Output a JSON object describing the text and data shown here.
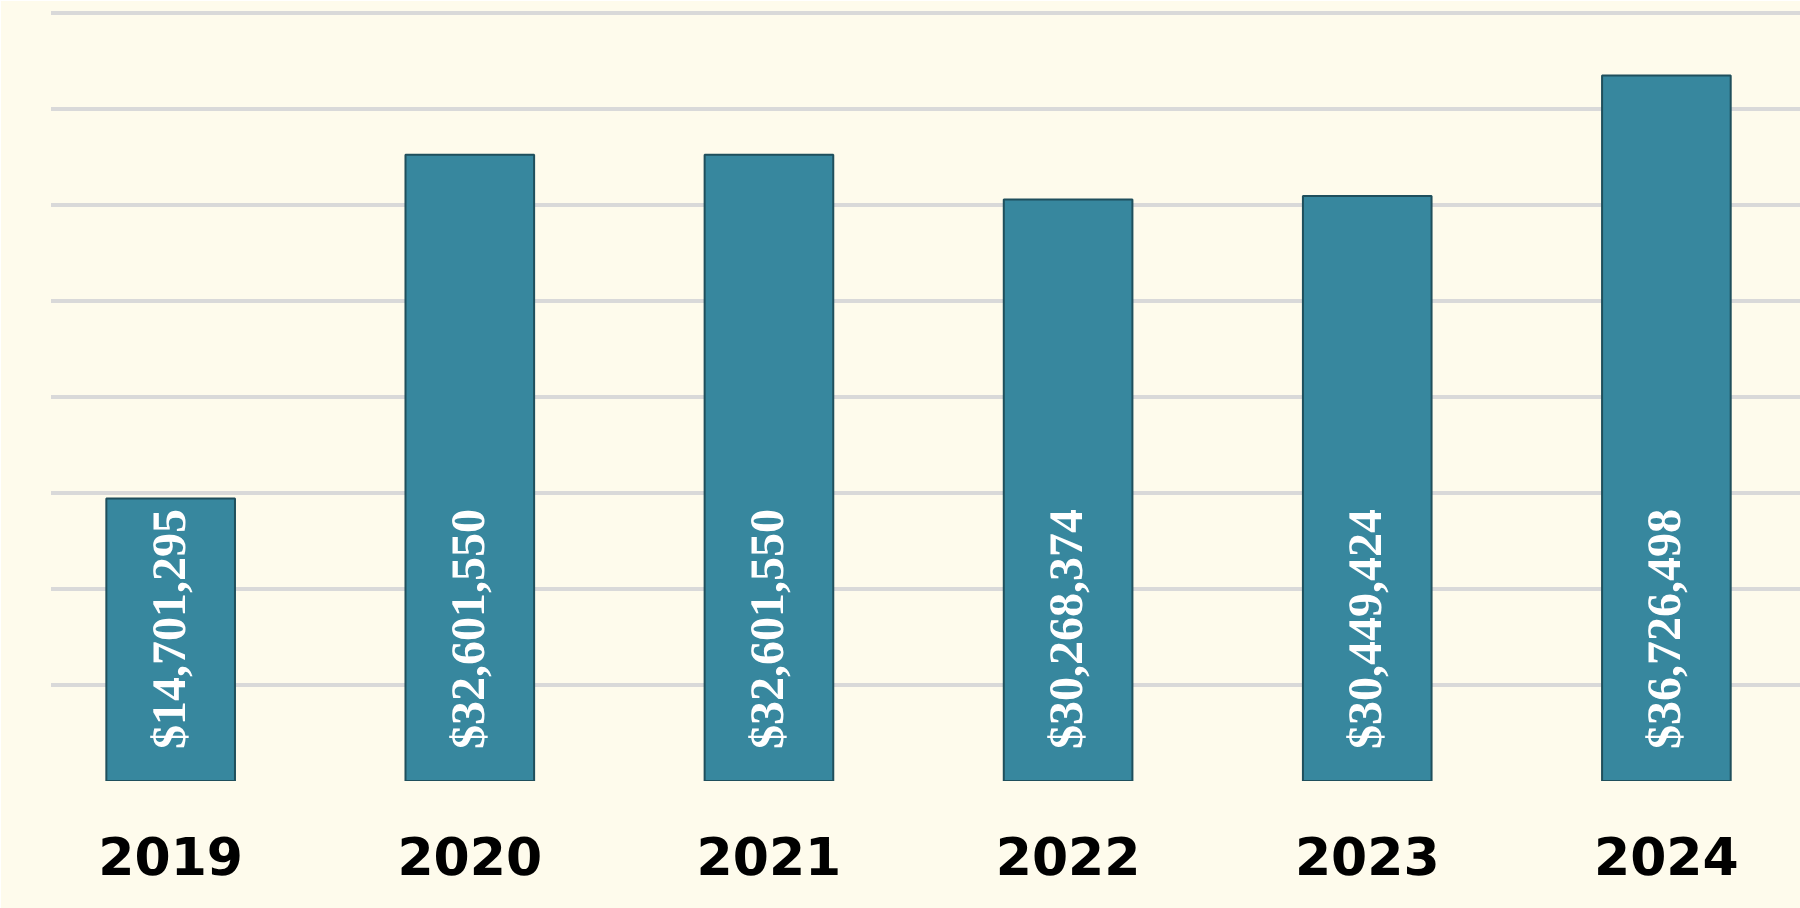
{
  "chart_data": {
    "type": "bar",
    "categories": [
      "2019",
      "2020",
      "2021",
      "2022",
      "2023",
      "2024"
    ],
    "values": [
      14701295,
      32601550,
      32601550,
      30268374,
      30449424,
      36726498
    ],
    "value_labels": [
      "$14,701,295",
      "$32,601,550",
      "$32,601,550",
      "$30,268,374",
      "$30,449,424",
      "$36,726,498"
    ],
    "color": "#37879e",
    "ylim": [
      0,
      40600000
    ],
    "yticks": [
      {
        "value": 0,
        "label": null
      },
      {
        "value": 5000000,
        "label": null
      },
      {
        "value": 10000000,
        "label": null
      },
      {
        "value": 15000000,
        "label": null
      },
      {
        "value": 20000000,
        "label": null
      },
      {
        "value": 25000000,
        "label": null
      },
      {
        "value": 30000000,
        "label": null
      },
      {
        "value": 35000000,
        "label": null
      },
      {
        "value": 40000000,
        "label": null
      }
    ],
    "grid": "y",
    "tick_labels": "x",
    "legend": false
  }
}
